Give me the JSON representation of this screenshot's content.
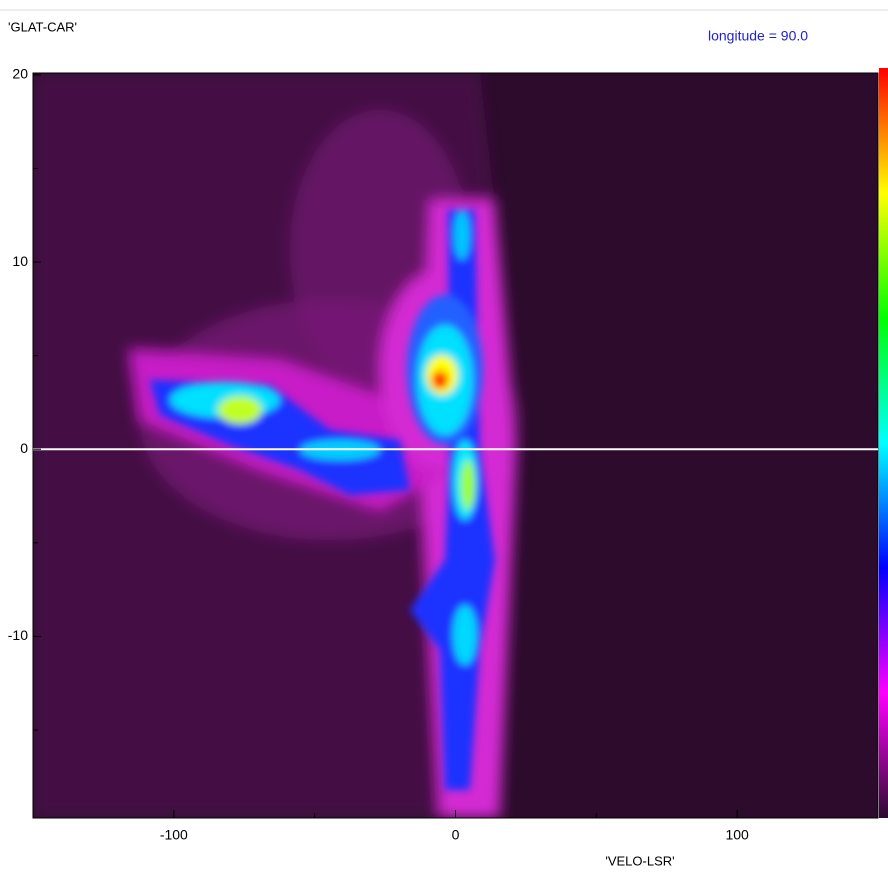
{
  "chart_data": {
    "type": "image",
    "title": "longitude = 90.0",
    "y_label": "'GLAT-CAR'",
    "x_label": "'VELO-LSR'",
    "xlim": [
      -150,
      150
    ],
    "xticks": [
      -100,
      0,
      100
    ],
    "x_minor_ticks": [
      -50,
      50
    ],
    "ylim": [
      -19.7,
      20.1
    ],
    "yticks": [
      -10,
      0,
      10,
      20
    ],
    "y_minor_ticks": [
      -15,
      -5,
      5,
      15
    ],
    "hline": 0,
    "hline_color": "#ffffff",
    "background": "#2c0b2c",
    "colormap": [
      "#ff0000",
      "#ffff00",
      "#00ff00",
      "#00ffff",
      "#0000ff",
      "#ff00ff",
      "#2c0b2c"
    ]
  }
}
